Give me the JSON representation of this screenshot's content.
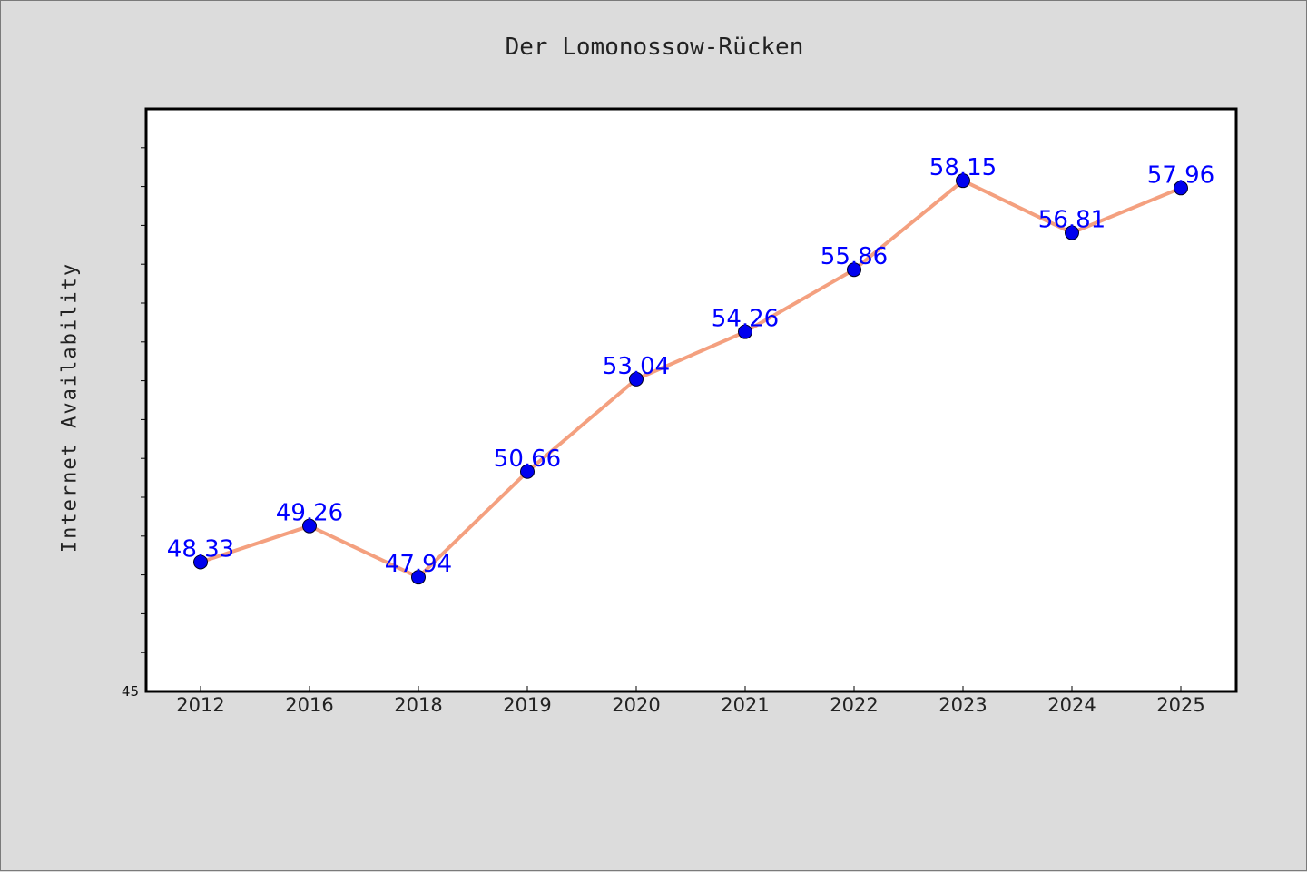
{
  "chart_data": {
    "type": "line",
    "title": "Der Lomonossow-Rücken",
    "xlabel": "",
    "ylabel": "Internet Availability",
    "categories": [
      "2012",
      "2016",
      "2018",
      "2019",
      "2020",
      "2021",
      "2022",
      "2023",
      "2024",
      "2025"
    ],
    "series": [
      {
        "values": [
          48.33,
          49.26,
          47.94,
          50.66,
          53.04,
          54.26,
          55.86,
          58.15,
          56.81,
          57.96
        ],
        "labels": [
          "48.33",
          "49.26",
          "47.94",
          "50.66",
          "53.04",
          "54.26",
          "55.86",
          "58.15",
          "56.81",
          "57.96"
        ],
        "line_color": "#f4a07f",
        "marker_color": "#0000ee",
        "label_color": "#0000ff"
      }
    ],
    "ylim": [
      45,
      60
    ],
    "y_tick_labels": [
      "45"
    ],
    "grid": false,
    "legend": "none"
  }
}
